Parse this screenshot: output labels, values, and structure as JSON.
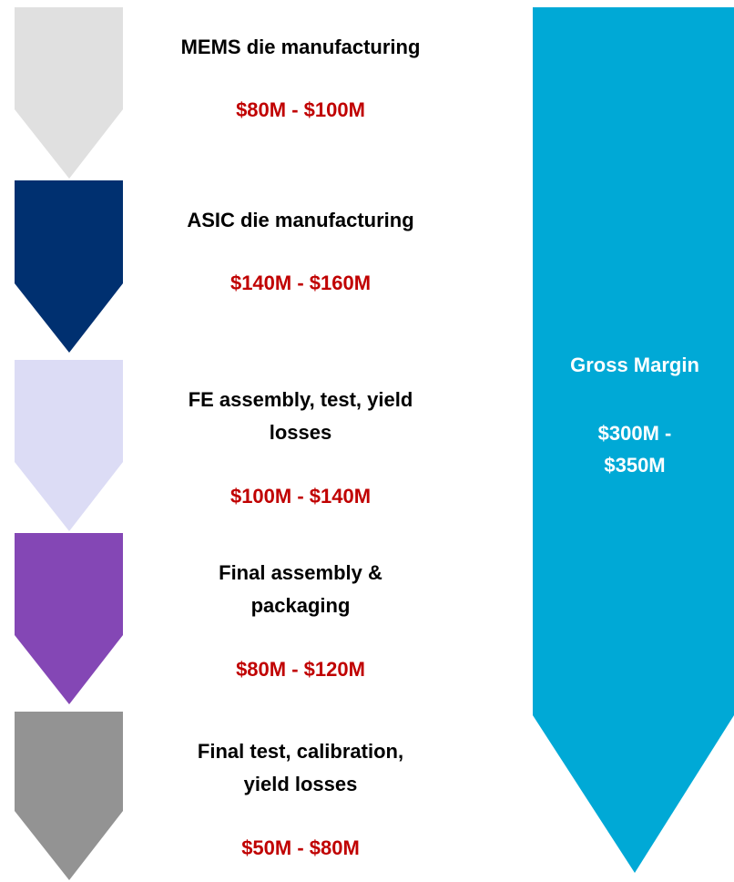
{
  "stages": [
    {
      "label": [
        "MEMS die manufacturing"
      ],
      "value": "$80M - $100M",
      "color": "#e0e0e0"
    },
    {
      "label": [
        "ASIC die manufacturing"
      ],
      "value": "$140M - $160M",
      "color": "#003070"
    },
    {
      "label": [
        "FE assembly, test, yield",
        "losses"
      ],
      "value": "$100M - $140M",
      "color": "#dcdcf5"
    },
    {
      "label": [
        "Final assembly &",
        "packaging"
      ],
      "value": "$80M - $120M",
      "color": "#8447b5"
    },
    {
      "label": [
        "Final test, calibration,",
        "yield losses"
      ],
      "value": "$50M - $80M",
      "color": "#939393"
    }
  ],
  "gross_margin": {
    "label": "Gross Margin",
    "value": [
      "$300M -",
      "$350M"
    ],
    "color": "#00a9d6"
  }
}
